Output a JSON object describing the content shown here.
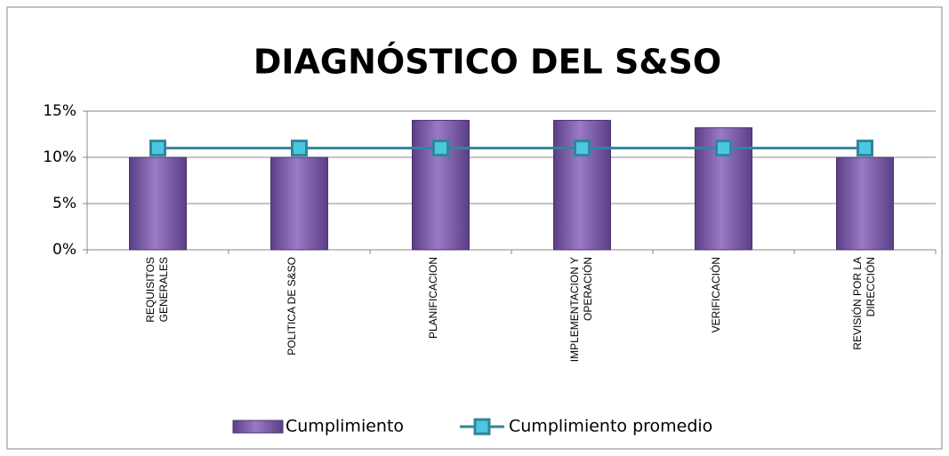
{
  "chart_data": {
    "type": "bar_line",
    "title": "DIAGNÓSTICO DEL S&SO",
    "categories": [
      "REQUISITOS GENERALES",
      "POLITICA DE S&SO",
      "PLANIFICACION",
      "IMPLEMENTACION Y OPERACIÓN",
      "VERIFICACIÓN",
      "REVISIÓN POR LA DIRECCIÓN"
    ],
    "series": [
      {
        "name": "Cumplimiento",
        "type": "bar",
        "color": "#7f5fa8",
        "values": [
          10,
          10,
          14,
          14,
          13.2,
          10
        ]
      },
      {
        "name": "Cumplimiento promedio",
        "type": "line",
        "color": "#31859c",
        "values": [
          11,
          11,
          11,
          11,
          11,
          11
        ]
      }
    ],
    "ylim": [
      0,
      15
    ],
    "yticks": [
      {
        "value": 0,
        "label": "0%"
      },
      {
        "value": 5,
        "label": "5%"
      },
      {
        "value": 10,
        "label": "10%"
      },
      {
        "value": 15,
        "label": "15%"
      }
    ],
    "grid": true,
    "legend": "bottom"
  }
}
